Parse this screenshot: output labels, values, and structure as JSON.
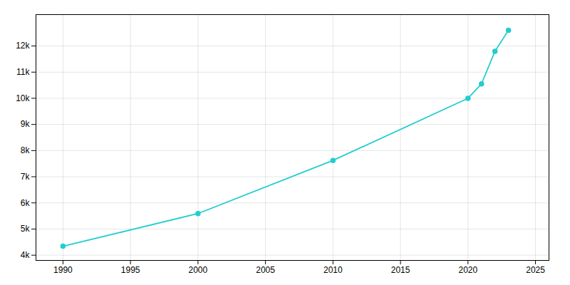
{
  "chart_data": {
    "type": "line",
    "x": [
      1990,
      2000,
      2010,
      2020,
      2021,
      2022,
      2023
    ],
    "values": [
      4342,
      5592,
      7624,
      10000,
      10550,
      11800,
      12600
    ],
    "color": "#22CDD0",
    "marker": "o",
    "xlim": [
      1988,
      2026
    ],
    "ylim": [
      3800,
      13200
    ],
    "xticks": [
      1990,
      1995,
      2000,
      2005,
      2010,
      2015,
      2020,
      2025
    ],
    "yticks": [
      {
        "value": 4000,
        "label": "4k"
      },
      {
        "value": 5000,
        "label": "5k"
      },
      {
        "value": 6000,
        "label": "6k"
      },
      {
        "value": 7000,
        "label": "7k"
      },
      {
        "value": 8000,
        "label": "8k"
      },
      {
        "value": 9000,
        "label": "9k"
      },
      {
        "value": 10000,
        "label": "10k"
      },
      {
        "value": 11000,
        "label": "11k"
      },
      {
        "value": 12000,
        "label": "12k"
      }
    ],
    "grid": true
  }
}
